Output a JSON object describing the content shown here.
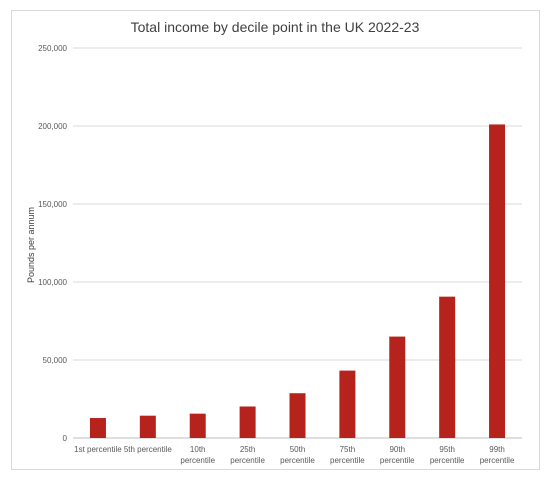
{
  "chart_data": {
    "type": "bar",
    "title": "Total income by decile point in the UK 2022-23",
    "xlabel": "",
    "ylabel": "Pounds per annum",
    "categories": [
      [
        "1st percentile"
      ],
      [
        "5th percentile"
      ],
      [
        "10th",
        "percentile"
      ],
      [
        "25th",
        "percentile"
      ],
      [
        "50th",
        "percentile"
      ],
      [
        "75th",
        "percentile"
      ],
      [
        "90th",
        "percentile"
      ],
      [
        "95th",
        "percentile"
      ],
      [
        "99th",
        "percentile"
      ]
    ],
    "values": [
      12800,
      14300,
      15600,
      20200,
      28700,
      43200,
      65000,
      90600,
      201000
    ],
    "ylim": [
      0,
      250000
    ],
    "yticks": [
      0,
      50000,
      100000,
      150000,
      200000,
      250000
    ],
    "ytick_labels": [
      "0",
      "50,000",
      "100,000",
      "150,000",
      "200,000",
      "250,000"
    ],
    "grid": true,
    "bar_color": "#b5231c",
    "grid_color": "#d9d9d9",
    "axis_color": "#bfbfbf"
  }
}
